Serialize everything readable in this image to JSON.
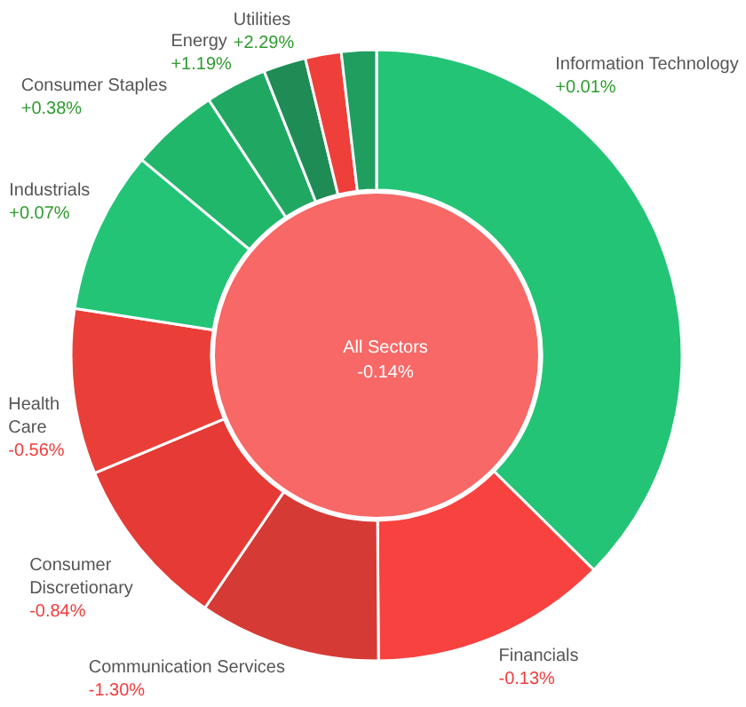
{
  "chart_data": {
    "type": "donut",
    "title": "All Sectors",
    "subtitle": "-0.14%",
    "categories": [
      "Information Technology",
      "Financials",
      "Communication Services",
      "Consumer Discretionary",
      "Health Care",
      "Industrials",
      "Consumer Staples",
      "Energy",
      "Utilities",
      null,
      null
    ],
    "values": [
      37.4,
      12.5,
      9.6,
      9.2,
      8.75,
      8.6,
      4.7,
      3.25,
      2.25,
      1.9,
      1.85
    ],
    "colors": [
      "#24c476",
      "#f84240",
      "#d63a35",
      "#e53a35",
      "#ea3f38",
      "#23c476",
      "#21b76a",
      "#20a863",
      "#1e8c54",
      "#ef3f3b",
      "#1f9e60"
    ],
    "annotations": [
      {
        "text": "+0.01%",
        "x": "Information Technology"
      },
      {
        "text": "-0.13%",
        "x": "Financials"
      },
      {
        "text": "-1.30%",
        "x": "Communication Services"
      },
      {
        "text": "-0.84%",
        "x": "Consumer Discretionary"
      },
      {
        "text": "-0.56%",
        "x": "Health Care"
      },
      {
        "text": "+0.07%",
        "x": "Industrials"
      },
      {
        "text": "+0.38%",
        "x": "Consumer Staples"
      },
      {
        "text": "+1.19%",
        "x": "Energy"
      },
      {
        "text": "+2.29%",
        "x": "Utilities"
      }
    ],
    "legend": false
  }
}
